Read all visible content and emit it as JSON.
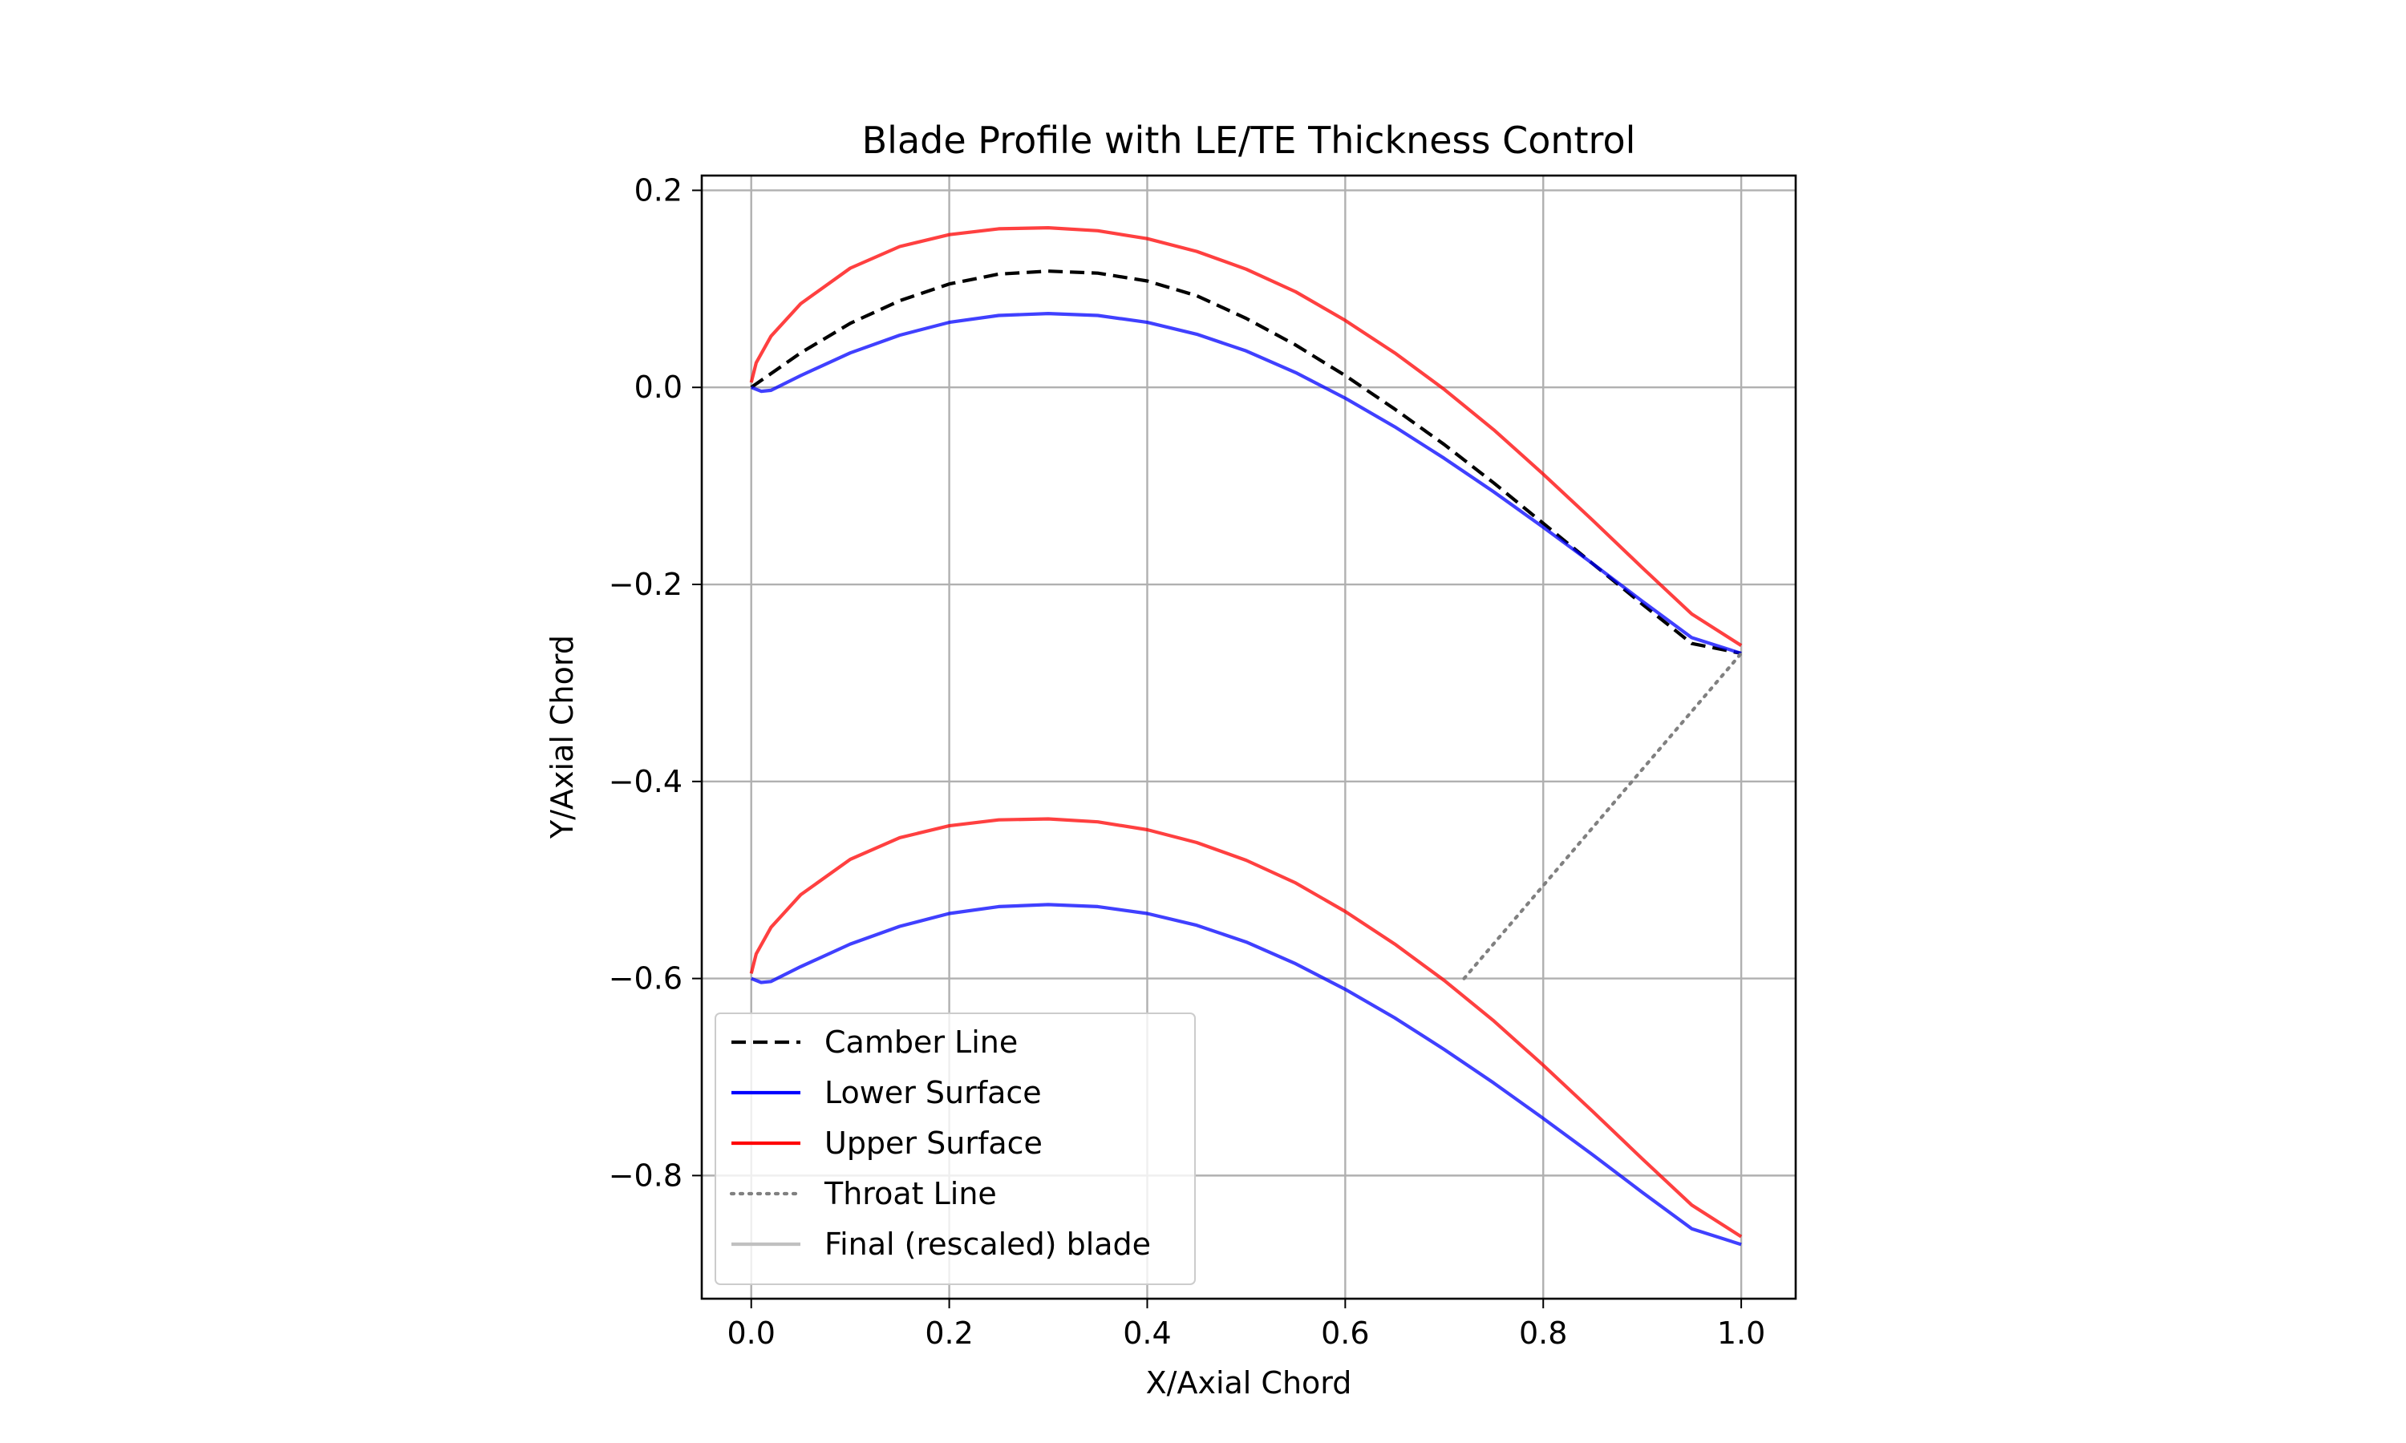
{
  "chart_data": {
    "type": "line",
    "title": "Blade Profile with LE/TE Thickness Control",
    "xlabel": "X/Axial Chord",
    "ylabel": "Y/Axial Chord",
    "xlim": [
      -0.05,
      1.055
    ],
    "ylim": [
      -0.925,
      0.215
    ],
    "grid": true,
    "legend_position": "lower-left",
    "xticks": [
      0.0,
      0.2,
      0.4,
      0.6,
      0.8,
      1.0
    ],
    "xtick_labels": [
      "0.0",
      "0.2",
      "0.4",
      "0.6",
      "0.8",
      "1.0"
    ],
    "yticks": [
      0.2,
      0.0,
      -0.2,
      -0.4,
      -0.6,
      -0.8
    ],
    "ytick_labels": [
      "0.2",
      "0.0",
      "−0.2",
      "−0.4",
      "−0.6",
      "−0.8"
    ],
    "series": [
      {
        "name": "Camber Line",
        "color": "#000000",
        "style": "dashed",
        "x": [
          0.0,
          0.05,
          0.1,
          0.15,
          0.2,
          0.25,
          0.3,
          0.35,
          0.4,
          0.45,
          0.5,
          0.55,
          0.6,
          0.65,
          0.7,
          0.75,
          0.8,
          0.85,
          0.9,
          0.95,
          1.0
        ],
        "y": [
          0.0,
          0.035,
          0.065,
          0.088,
          0.105,
          0.115,
          0.118,
          0.116,
          0.108,
          0.093,
          0.07,
          0.043,
          0.012,
          -0.022,
          -0.058,
          -0.097,
          -0.138,
          -0.179,
          -0.22,
          -0.26,
          -0.27
        ]
      },
      {
        "name": "Lower Surface",
        "color": "#0000ff",
        "style": "solid",
        "x": [
          0.0,
          0.01,
          0.02,
          0.05,
          0.1,
          0.15,
          0.2,
          0.25,
          0.3,
          0.35,
          0.4,
          0.45,
          0.5,
          0.55,
          0.6,
          0.65,
          0.7,
          0.75,
          0.8,
          0.85,
          0.9,
          0.95,
          1.0
        ],
        "y": [
          0.0,
          -0.004,
          -0.003,
          0.012,
          0.035,
          0.053,
          0.066,
          0.073,
          0.075,
          0.073,
          0.066,
          0.054,
          0.037,
          0.015,
          -0.011,
          -0.04,
          -0.072,
          -0.106,
          -0.142,
          -0.179,
          -0.217,
          -0.254,
          -0.27
        ]
      },
      {
        "name": "Upper Surface",
        "color": "#ff0000",
        "style": "solid",
        "x": [
          0.0,
          0.005,
          0.02,
          0.05,
          0.1,
          0.15,
          0.2,
          0.25,
          0.3,
          0.35,
          0.4,
          0.45,
          0.5,
          0.55,
          0.6,
          0.65,
          0.7,
          0.75,
          0.8,
          0.85,
          0.9,
          0.95,
          1.0
        ],
        "y": [
          0.005,
          0.025,
          0.052,
          0.085,
          0.121,
          0.143,
          0.155,
          0.161,
          0.162,
          0.159,
          0.151,
          0.138,
          0.12,
          0.097,
          0.068,
          0.035,
          -0.002,
          -0.043,
          -0.088,
          -0.135,
          -0.183,
          -0.23,
          -0.262
        ]
      },
      {
        "name": "Throat Line",
        "color": "#808080",
        "style": "dotted",
        "x": [
          0.72,
          1.0
        ],
        "y": [
          -0.6,
          -0.27
        ]
      },
      {
        "name": "Final (rescaled) blade",
        "color": "#c0c0c0",
        "style": "solid",
        "x": [],
        "y": []
      }
    ],
    "blade_offset": -0.6
  }
}
